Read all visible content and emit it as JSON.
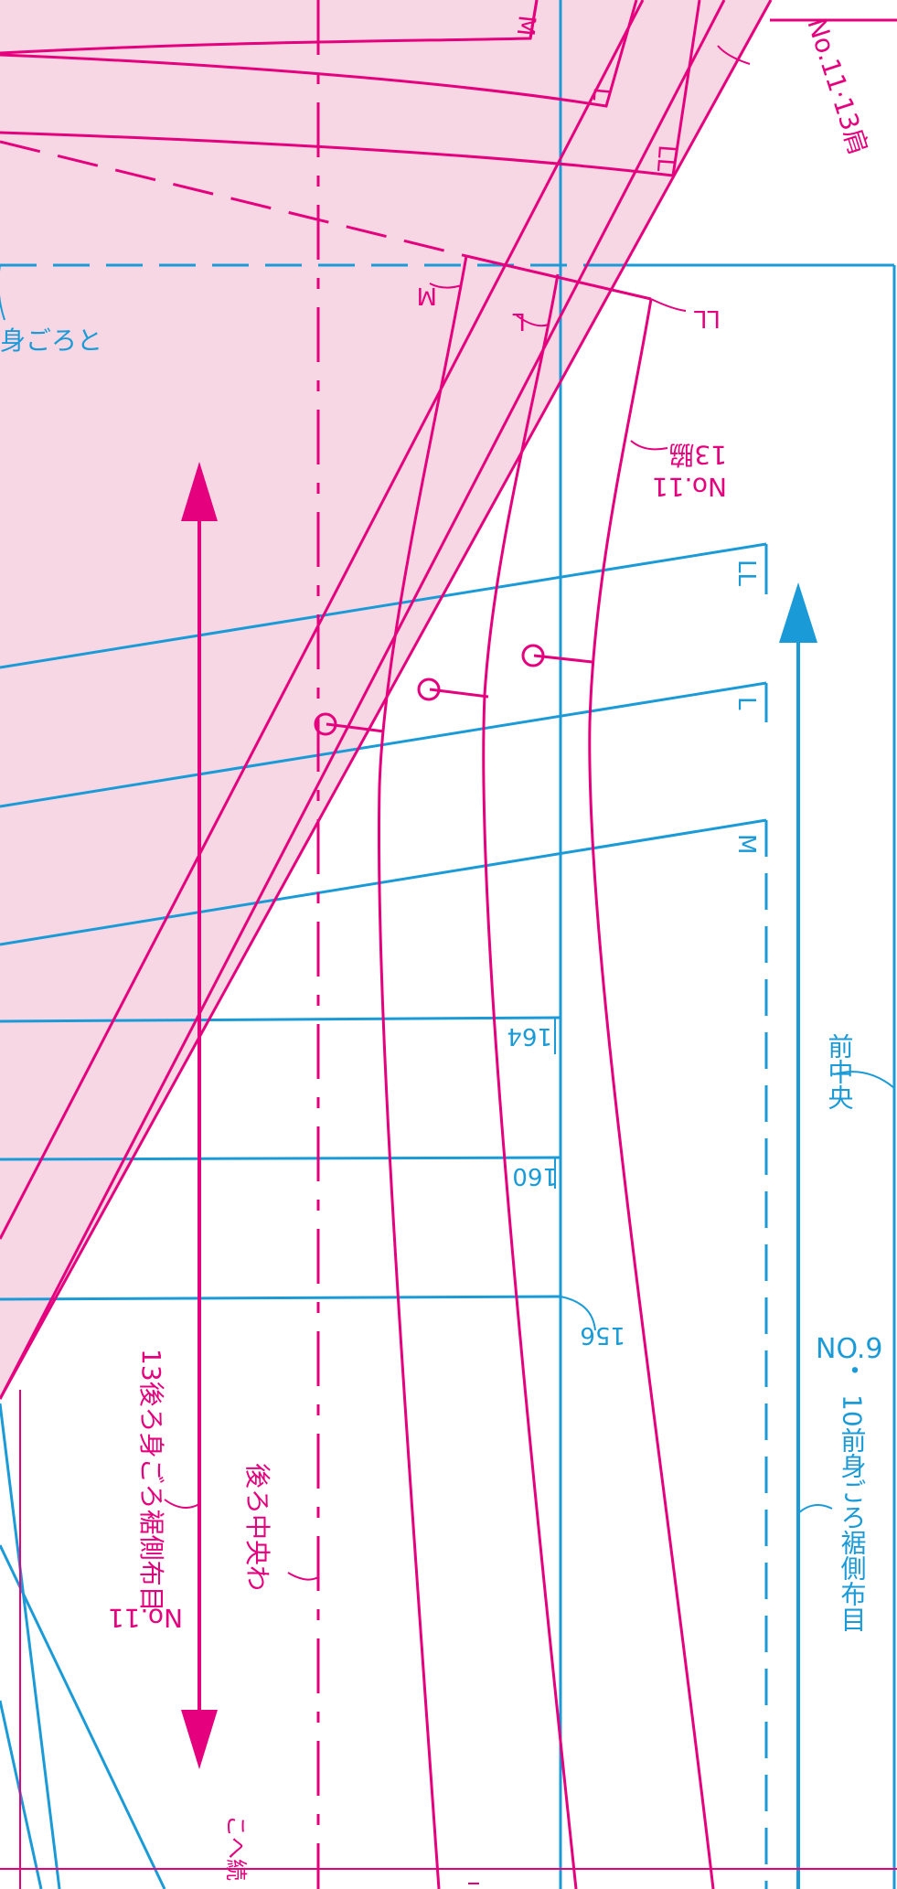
{
  "colors": {
    "magenta": "#e5007e",
    "cyan": "#1a9bd7",
    "pink_fill": "#f8d7e4",
    "background": "#ffffff"
  },
  "icons": {
    "grain_arrow_magenta": "double-headed-arrow-icon",
    "grain_arrow_cyan": "single-headed-arrow-icon",
    "notch_marker": "circle-notch-icon"
  },
  "labels": {
    "size_m_top": "M",
    "size_l_top": "L",
    "size_ll_top": "LL",
    "no11_13_shoulder": "No.11·13肩",
    "back_body_partial": "身ごろと",
    "size_m_shoulder": "M",
    "size_l_shoulder": "L",
    "size_ll_shoulder": "LL",
    "no11_13_side_line1": "No.11",
    "no11_13_side_line2": "13脇",
    "size_ll_right": "LL",
    "size_l_right": "L",
    "size_m_right": "M",
    "height_164": "164",
    "height_160": "160",
    "height_156": "156",
    "front_center": "前中央",
    "no9_10_line1": "NO.9",
    "no9_10_line2": "・",
    "no9_10_line3": "10前身ごろ裾側布目",
    "no11_13_grain_line1": "No.11",
    "no11_13_grain_line2": "13後ろ身ごろ裾側布目",
    "back_center_fold": "後ろ中央わ",
    "bottom_partial": "こへ続"
  }
}
